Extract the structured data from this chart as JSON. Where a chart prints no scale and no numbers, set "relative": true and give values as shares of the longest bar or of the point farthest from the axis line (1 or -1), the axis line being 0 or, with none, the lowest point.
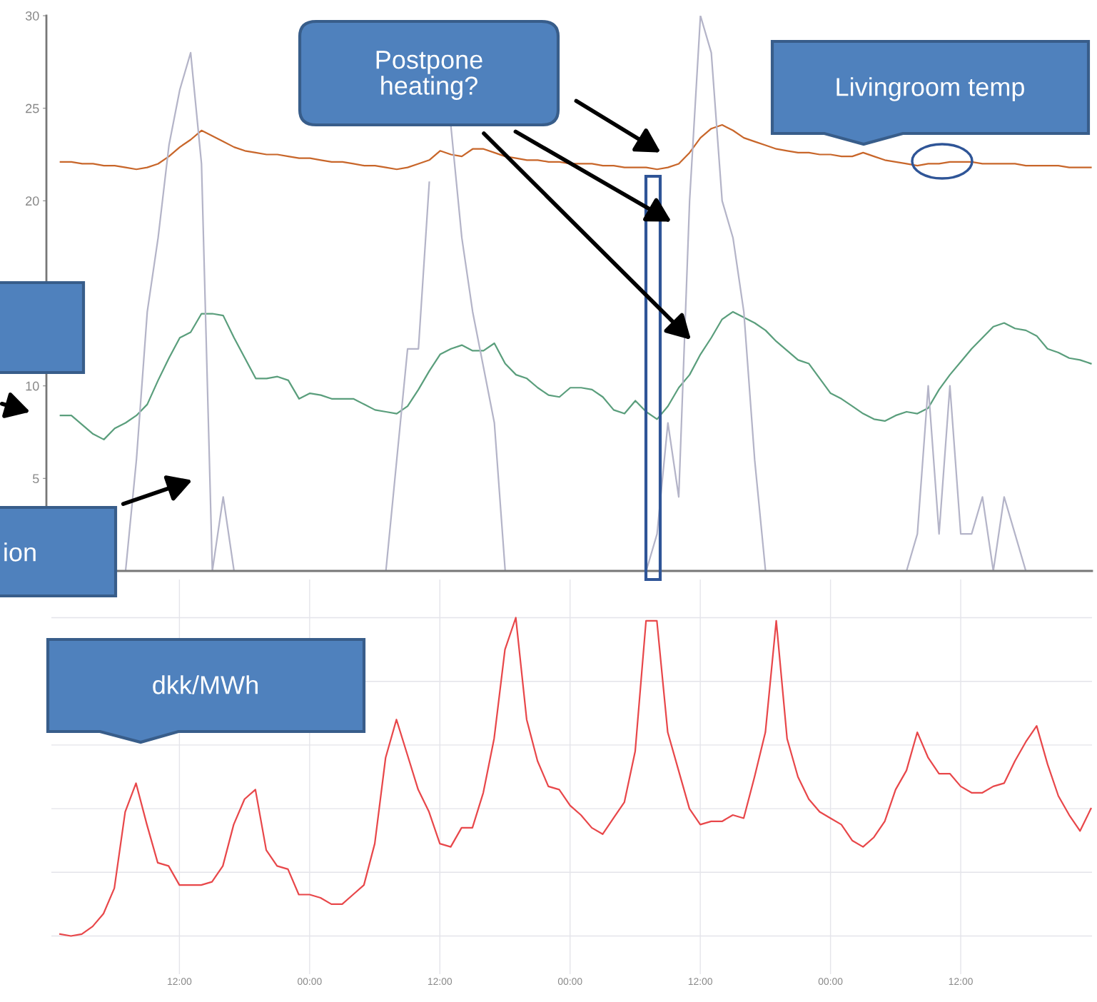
{
  "chart_data": [
    {
      "type": "line",
      "ylim": [
        0,
        30
      ],
      "yticks": [
        5,
        10,
        {
          "value": 15,
          "label": null
        },
        20,
        25,
        30
      ],
      "tick_labels": "y",
      "grid": false,
      "categories": [
        null,
        null,
        null,
        null,
        null,
        null,
        null,
        null,
        null,
        null,
        null,
        null,
        null,
        null,
        null,
        null,
        null,
        null,
        null,
        null,
        null,
        null,
        null,
        null,
        null,
        null,
        null,
        null,
        null,
        null,
        null,
        null,
        null,
        null,
        null,
        null,
        null,
        null,
        null,
        null,
        null,
        null,
        null,
        null,
        null,
        null,
        null,
        null,
        null,
        null,
        null,
        null,
        null,
        null,
        null,
        null,
        null,
        null,
        null,
        null,
        null,
        null,
        null,
        null,
        null,
        null,
        null,
        null,
        null,
        null,
        null,
        null,
        null,
        null,
        null,
        null,
        null,
        null,
        null,
        null,
        null,
        null,
        null,
        null,
        null,
        null,
        null,
        null,
        null,
        null,
        null,
        null,
        null,
        null,
        null,
        null
      ],
      "annotations": [
        "Postpone heating?",
        "Livingroom temp",
        "ion"
      ],
      "series": [
        {
          "color": "#c8662a",
          "values": [
            22.1,
            22.1,
            22.0,
            22.0,
            21.9,
            21.9,
            21.8,
            21.7,
            21.8,
            22.0,
            22.4,
            22.9,
            23.3,
            23.8,
            23.5,
            23.2,
            22.9,
            22.7,
            22.6,
            22.5,
            22.5,
            22.4,
            22.3,
            22.3,
            22.2,
            22.1,
            22.1,
            22.0,
            21.9,
            21.9,
            21.8,
            21.7,
            21.8,
            22.0,
            22.2,
            22.7,
            22.5,
            22.4,
            22.8,
            22.8,
            22.6,
            22.4,
            22.3,
            22.2,
            22.2,
            22.1,
            22.1,
            22.0,
            22.0,
            22.0,
            21.9,
            21.9,
            21.8,
            21.8,
            21.8,
            21.7,
            21.8,
            22.0,
            22.6,
            23.4,
            23.9,
            24.1,
            23.8,
            23.4,
            23.2,
            23.0,
            22.8,
            22.7,
            22.6,
            22.6,
            22.5,
            22.5,
            22.4,
            22.4,
            22.6,
            22.4,
            22.2,
            22.1,
            22.0,
            21.9,
            22.0,
            22.0,
            22.1,
            22.1,
            22.1,
            22.0,
            22.0,
            22.0,
            22.0,
            21.9,
            21.9,
            21.9,
            21.9,
            21.8,
            21.8,
            21.8
          ]
        },
        {
          "color": "#5a9e7c",
          "values": [
            8.4,
            8.4,
            7.9,
            7.4,
            7.1,
            7.7,
            8.0,
            8.4,
            9.0,
            10.3,
            11.5,
            12.6,
            12.9,
            13.9,
            13.9,
            13.8,
            12.6,
            11.5,
            10.4,
            10.4,
            10.5,
            10.3,
            9.3,
            9.6,
            9.5,
            9.3,
            9.3,
            9.3,
            9.0,
            8.7,
            8.6,
            8.5,
            8.9,
            9.8,
            10.8,
            11.7,
            12.0,
            12.2,
            11.9,
            11.9,
            12.3,
            11.2,
            10.6,
            10.4,
            9.9,
            9.5,
            9.4,
            9.9,
            9.9,
            9.8,
            9.4,
            8.7,
            8.5,
            9.2,
            8.6,
            8.2,
            8.9,
            9.9,
            10.6,
            11.7,
            12.6,
            13.6,
            14.0,
            13.7,
            13.4,
            13.0,
            12.4,
            11.9,
            11.4,
            11.2,
            10.4,
            9.6,
            9.3,
            8.9,
            8.5,
            8.2,
            8.1,
            8.4,
            8.6,
            8.5,
            8.8,
            9.8,
            10.6,
            11.3,
            12.0,
            12.6,
            13.2,
            13.4,
            13.1,
            13.0,
            12.7,
            12.0,
            11.8,
            11.5,
            11.4,
            11.2
          ]
        },
        {
          "color": "#b4b4c8",
          "values": [
            null,
            null,
            null,
            null,
            null,
            null,
            0,
            6,
            14,
            18,
            23,
            26,
            28,
            22,
            0,
            4,
            0,
            0,
            0,
            0,
            0,
            0,
            0,
            0,
            0,
            0,
            0,
            0,
            0,
            0,
            0,
            6,
            12,
            12,
            21,
            null,
            24,
            18,
            14,
            11,
            8,
            0,
            0,
            0,
            0,
            0,
            0,
            0,
            0,
            0,
            0,
            0,
            0,
            0,
            0,
            2,
            8,
            4,
            20,
            30,
            28,
            20,
            18,
            14,
            6,
            0,
            0,
            0,
            0,
            0,
            0,
            0,
            0,
            0,
            0,
            0,
            0,
            0,
            0,
            2,
            10,
            2,
            10,
            2,
            2,
            4,
            0,
            4,
            2,
            0,
            0,
            0,
            0,
            0,
            0,
            0
          ]
        }
      ]
    },
    {
      "type": "line",
      "relative": true,
      "tick_labels": "x",
      "grid": true,
      "categories": [
        null,
        null,
        null,
        null,
        null,
        null,
        null,
        null,
        null,
        null,
        null,
        "12:00",
        null,
        null,
        null,
        null,
        null,
        null,
        null,
        null,
        null,
        null,
        null,
        "00:00",
        null,
        null,
        null,
        null,
        null,
        null,
        null,
        null,
        null,
        null,
        null,
        "12:00",
        null,
        null,
        null,
        null,
        null,
        null,
        null,
        null,
        null,
        null,
        null,
        "00:00",
        null,
        null,
        null,
        null,
        null,
        null,
        null,
        null,
        null,
        null,
        null,
        "12:00",
        null,
        null,
        null,
        null,
        null,
        null,
        null,
        null,
        null,
        null,
        null,
        "00:00",
        null,
        null,
        null,
        null,
        null,
        null,
        null,
        null,
        null,
        null,
        null,
        "12:00",
        null,
        null,
        null,
        null,
        null,
        null,
        null,
        null,
        null,
        null,
        null,
        null
      ],
      "annotations": [
        "dkk/MWh"
      ],
      "series": [
        {
          "color": "#e8474a",
          "values": [
            0.006,
            0,
            0.006,
            0.03,
            0.07,
            0.15,
            0.39,
            0.48,
            0.35,
            0.23,
            0.22,
            0.16,
            0.16,
            0.16,
            0.17,
            0.22,
            0.35,
            0.43,
            0.46,
            0.27,
            0.22,
            0.21,
            0.13,
            0.13,
            0.12,
            0.1,
            0.1,
            0.13,
            0.16,
            0.29,
            0.56,
            0.68,
            0.57,
            0.46,
            0.39,
            0.29,
            0.28,
            0.34,
            0.34,
            0.45,
            0.62,
            0.9,
            1,
            0.68,
            0.55,
            0.47,
            0.46,
            0.41,
            0.38,
            0.34,
            0.32,
            0.37,
            0.42,
            0.58,
            0.99,
            0.99,
            0.64,
            0.52,
            0.4,
            0.35,
            0.36,
            0.36,
            0.38,
            0.37,
            0.5,
            0.64,
            0.99,
            0.62,
            0.5,
            0.43,
            0.39,
            0.37,
            0.35,
            0.3,
            0.28,
            0.31,
            0.36,
            0.46,
            0.52,
            0.64,
            0.56,
            0.51,
            0.51,
            0.47,
            0.45,
            0.45,
            0.47,
            0.48,
            0.55,
            0.61,
            0.66,
            0.54,
            0.44,
            0.38,
            0.33,
            0.4
          ]
        }
      ]
    }
  ]
}
